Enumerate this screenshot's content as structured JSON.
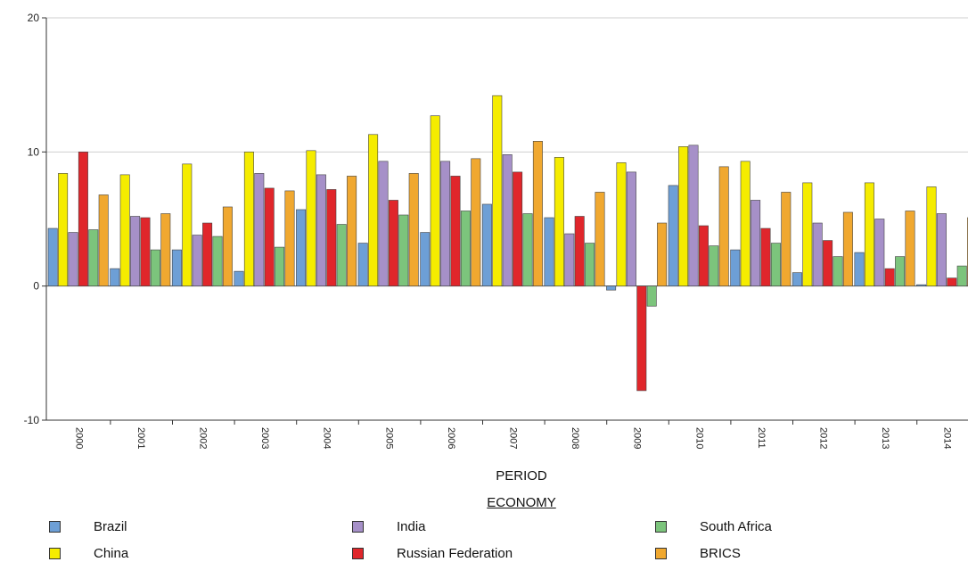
{
  "chart_data": {
    "type": "bar",
    "categories": [
      "2000",
      "2001",
      "2002",
      "2003",
      "2004",
      "2005",
      "2006",
      "2007",
      "2008",
      "2009",
      "2010",
      "2011",
      "2012",
      "2013",
      "2014"
    ],
    "xlabel": "PERIOD",
    "legend_title": "ECONOMY",
    "ylim": [
      -10,
      20
    ],
    "yticks": [
      "20",
      "10",
      "0",
      "-10"
    ],
    "grid": true,
    "legend_position": "bottom",
    "series": [
      {
        "name": "Brazil",
        "color": "#6d9fd6",
        "values": [
          4.3,
          1.3,
          2.7,
          1.1,
          5.7,
          3.2,
          4.0,
          6.1,
          5.1,
          -0.3,
          7.5,
          2.7,
          1.0,
          2.5,
          0.1
        ]
      },
      {
        "name": "China",
        "color": "#f5ec00",
        "values": [
          8.4,
          8.3,
          9.1,
          10.0,
          10.1,
          11.3,
          12.7,
          14.2,
          9.6,
          9.2,
          10.4,
          9.3,
          7.7,
          7.7,
          7.4
        ]
      },
      {
        "name": "India",
        "color": "#a690c8",
        "values": [
          4.0,
          5.2,
          3.8,
          8.4,
          8.3,
          9.3,
          9.3,
          9.8,
          3.9,
          8.5,
          10.5,
          6.4,
          4.7,
          5.0,
          5.4
        ]
      },
      {
        "name": "Russian Federation",
        "color": "#e0262b",
        "values": [
          10.0,
          5.1,
          4.7,
          7.3,
          7.2,
          6.4,
          8.2,
          8.5,
          5.2,
          -7.8,
          4.5,
          4.3,
          3.4,
          1.3,
          0.6
        ]
      },
      {
        "name": "South Africa",
        "color": "#7cc47c",
        "values": [
          4.2,
          2.7,
          3.7,
          2.9,
          4.6,
          5.3,
          5.6,
          5.4,
          3.2,
          -1.5,
          3.0,
          3.2,
          2.2,
          2.2,
          1.5
        ]
      },
      {
        "name": "BRICS",
        "color": "#f0a830",
        "values": [
          6.8,
          5.4,
          5.9,
          7.1,
          8.2,
          8.4,
          9.5,
          10.8,
          7.0,
          4.7,
          8.9,
          7.0,
          5.5,
          5.6,
          5.1
        ]
      }
    ]
  }
}
